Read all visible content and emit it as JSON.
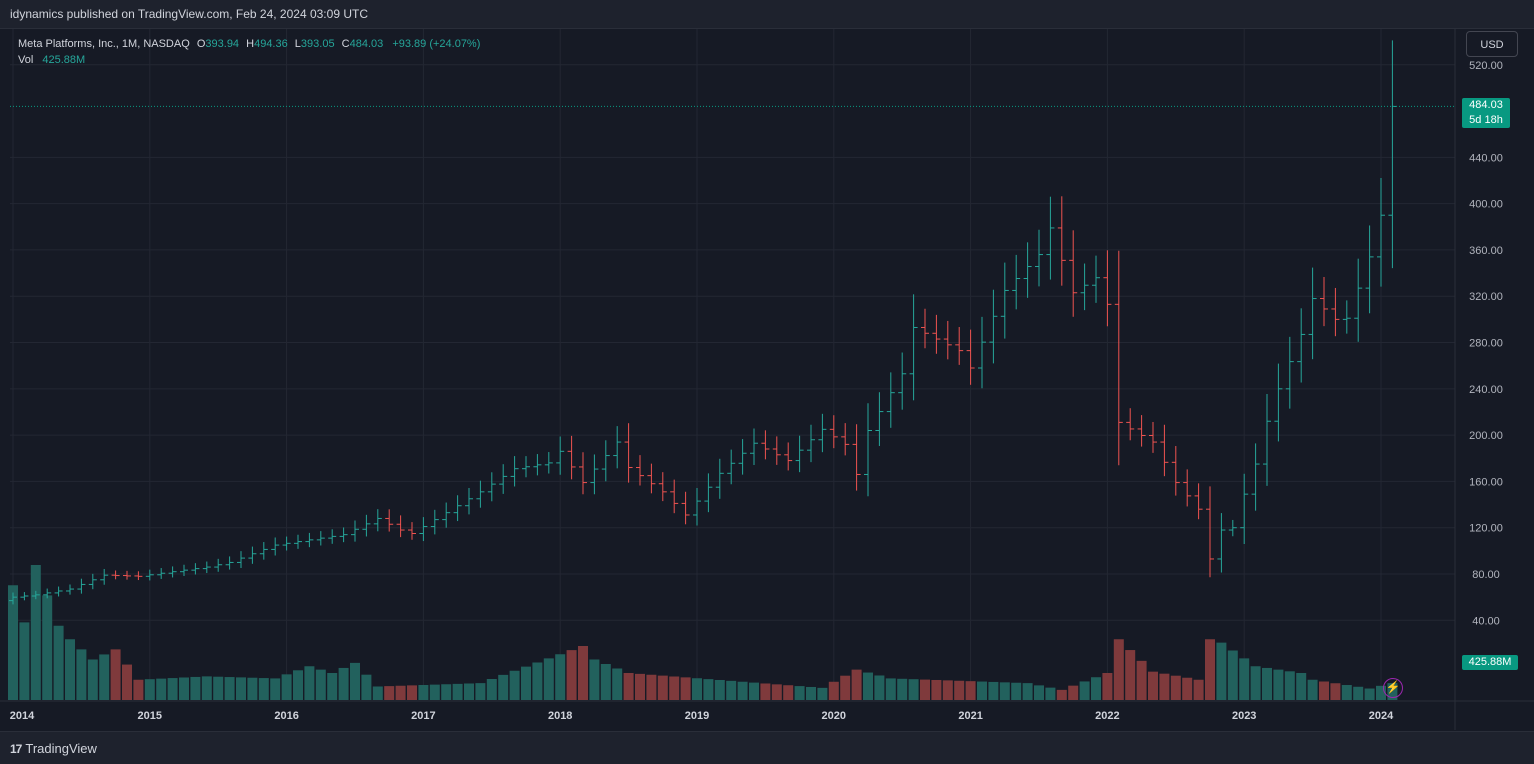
{
  "header": {
    "published_text": "idynamics published on TradingView.com, Feb 24, 2024 03:09 UTC"
  },
  "legend": {
    "symbol": "Meta Platforms, Inc., 1M, NASDAQ",
    "open_label": "O",
    "open": "393.94",
    "high_label": "H",
    "high": "494.36",
    "low_label": "L",
    "low": "393.05",
    "close_label": "C",
    "close": "484.03",
    "change": "+93.89 (+24.07%)",
    "vol_label": "Vol",
    "vol": "425.88M"
  },
  "currency_button": "USD",
  "last_price": {
    "price": "484.03",
    "countdown": "5d 18h"
  },
  "volume_tag": "425.88M",
  "footer": {
    "brand": "TradingView",
    "brand_mark": "17"
  },
  "colors": {
    "up": "#26a69a",
    "down": "#ef5350",
    "vol_up": "#22615d",
    "vol_down": "#7f3a3c",
    "background": "#161a25",
    "accent": "#089981"
  },
  "icons": {
    "replay": "lightning-bolt-icon"
  },
  "chart_data": {
    "type": "ohlc",
    "title": "Meta Platforms, Inc., 1M, NASDAQ",
    "y_ticks": [
      40,
      80,
      120,
      160,
      200,
      240,
      280,
      320,
      360,
      400,
      440,
      520
    ],
    "y_tick_labels": [
      "40.00",
      "80.00",
      "120.00",
      "160.00",
      "200.00",
      "240.00",
      "280.00",
      "320.00",
      "360.00",
      "400.00",
      "440.00",
      "520.00"
    ],
    "x_ticks": [
      "2014",
      "2015",
      "2016",
      "2017",
      "2018",
      "2019",
      "2020",
      "2021",
      "2022",
      "2023",
      "2024"
    ],
    "ylim": [
      -42,
      545
    ],
    "start": "2014-01",
    "months": 122,
    "anchors": [
      [
        "2014-01",
        60
      ],
      [
        "2014-03",
        62
      ],
      [
        "2014-06",
        67
      ],
      [
        "2014-09",
        79
      ],
      [
        "2014-12",
        78
      ],
      [
        "2015-06",
        86
      ],
      [
        "2015-08",
        90
      ],
      [
        "2015-12",
        105
      ],
      [
        "2016-06",
        114
      ],
      [
        "2016-09",
        128
      ],
      [
        "2016-11",
        118
      ],
      [
        "2016-12",
        115
      ],
      [
        "2017-06",
        151
      ],
      [
        "2017-09",
        171
      ],
      [
        "2017-12",
        176
      ],
      [
        "2018-01",
        186
      ],
      [
        "2018-03",
        159
      ],
      [
        "2018-06",
        194
      ],
      [
        "2018-07",
        172
      ],
      [
        "2018-10",
        151
      ],
      [
        "2018-12",
        131
      ],
      [
        "2019-03",
        167
      ],
      [
        "2019-06",
        193
      ],
      [
        "2019-09",
        178
      ],
      [
        "2019-12",
        205
      ],
      [
        "2020-02",
        192
      ],
      [
        "2020-03",
        166
      ],
      [
        "2020-04",
        204
      ],
      [
        "2020-07",
        253
      ],
      [
        "2020-08",
        293
      ],
      [
        "2020-12",
        273
      ],
      [
        "2021-01",
        258
      ],
      [
        "2021-04",
        325
      ],
      [
        "2021-07",
        356
      ],
      [
        "2021-08",
        379
      ],
      [
        "2021-10",
        323
      ],
      [
        "2021-12",
        336
      ],
      [
        "2022-01",
        313
      ],
      [
        "2022-02",
        211
      ],
      [
        "2022-05",
        194
      ],
      [
        "2022-07",
        159
      ],
      [
        "2022-09",
        136
      ],
      [
        "2022-10",
        93
      ],
      [
        "2022-11",
        118
      ],
      [
        "2022-12",
        120
      ],
      [
        "2023-01",
        149
      ],
      [
        "2023-02",
        175
      ],
      [
        "2023-03",
        212
      ],
      [
        "2023-04",
        240
      ],
      [
        "2023-06",
        287
      ],
      [
        "2023-07",
        318
      ],
      [
        "2023-09",
        300
      ],
      [
        "2023-10",
        301
      ],
      [
        "2023-11",
        327
      ],
      [
        "2023-12",
        354
      ],
      [
        "2024-01",
        390
      ],
      [
        "2024-02",
        484
      ]
    ],
    "volume_anchors": [
      [
        "2014-01",
        170
      ],
      [
        "2014-02",
        115
      ],
      [
        "2014-03",
        200
      ],
      [
        "2014-05",
        110
      ],
      [
        "2014-06",
        90
      ],
      [
        "2014-08",
        60
      ],
      [
        "2014-10",
        75
      ],
      [
        "2014-12",
        30
      ],
      [
        "2015-06",
        35
      ],
      [
        "2015-12",
        32
      ],
      [
        "2016-03",
        50
      ],
      [
        "2016-05",
        40
      ],
      [
        "2016-07",
        55
      ],
      [
        "2016-09",
        20
      ],
      [
        "2017-06",
        25
      ],
      [
        "2018-03",
        80
      ],
      [
        "2018-04",
        60
      ],
      [
        "2018-07",
        40
      ],
      [
        "2019-12",
        18
      ],
      [
        "2020-03",
        45
      ],
      [
        "2020-06",
        32
      ],
      [
        "2021-06",
        25
      ],
      [
        "2021-09",
        15
      ],
      [
        "2022-01",
        40
      ],
      [
        "2022-02",
        90
      ],
      [
        "2022-05",
        42
      ],
      [
        "2022-09",
        30
      ],
      [
        "2022-10",
        90
      ],
      [
        "2022-11",
        85
      ],
      [
        "2023-02",
        50
      ],
      [
        "2023-06",
        40
      ],
      [
        "2023-07",
        30
      ],
      [
        "2023-12",
        17
      ],
      [
        "2024-02",
        25
      ]
    ],
    "volume_max": 200
  }
}
